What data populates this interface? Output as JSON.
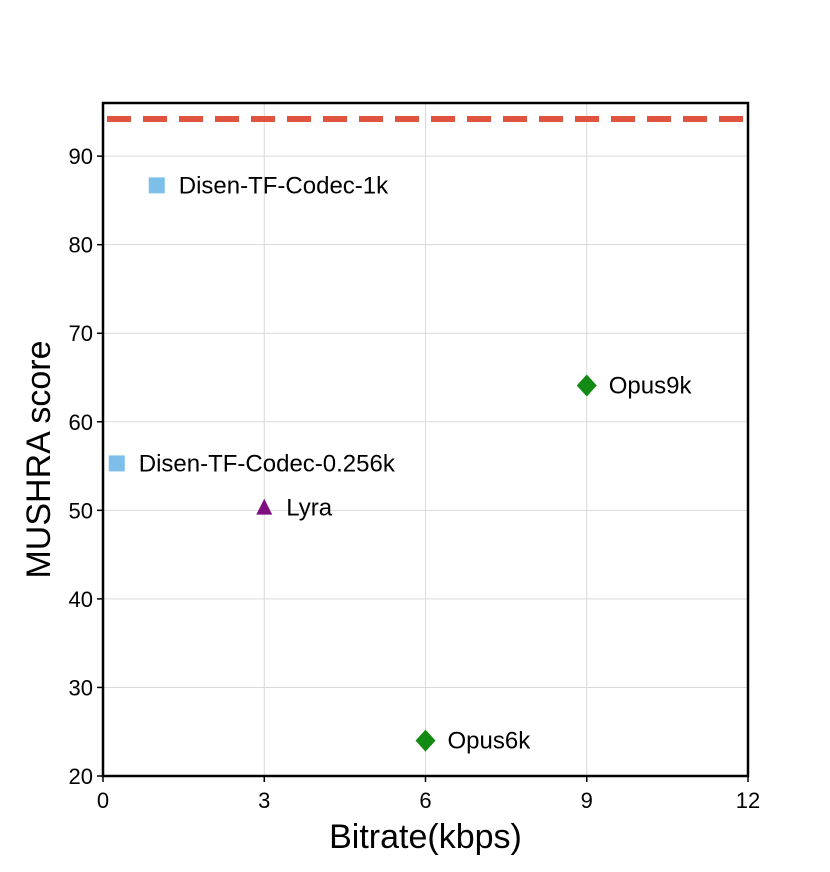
{
  "chart_data": {
    "type": "scatter",
    "title": "",
    "xlabel": "Bitrate(kbps)",
    "ylabel": "MUSHRA score",
    "xlim": [
      0,
      12
    ],
    "ylim": [
      20,
      96
    ],
    "xticks": [
      0,
      3,
      6,
      9,
      12
    ],
    "yticks": [
      20,
      30,
      40,
      50,
      60,
      70,
      80,
      90
    ],
    "grid": true,
    "reference_line": {
      "y": 94.2,
      "style": "dashed",
      "color": "#e0533f"
    },
    "points": [
      {
        "label": "Disen-TF-Codec-1k",
        "x": 1,
        "y": 86.7,
        "marker": "square",
        "color": "#7dbfe9"
      },
      {
        "label": "Disen-TF-Codec-0.256k",
        "x": 0.256,
        "y": 55.3,
        "marker": "square",
        "color": "#7dbfe9"
      },
      {
        "label": "Lyra",
        "x": 3,
        "y": 50.3,
        "marker": "triangle",
        "color": "#7f0f7f"
      },
      {
        "label": "Opus9k",
        "x": 9,
        "y": 64.1,
        "marker": "diamond",
        "color": "#138a13"
      },
      {
        "label": "Opus6k",
        "x": 6,
        "y": 24.0,
        "marker": "diamond",
        "color": "#138a13"
      }
    ]
  }
}
